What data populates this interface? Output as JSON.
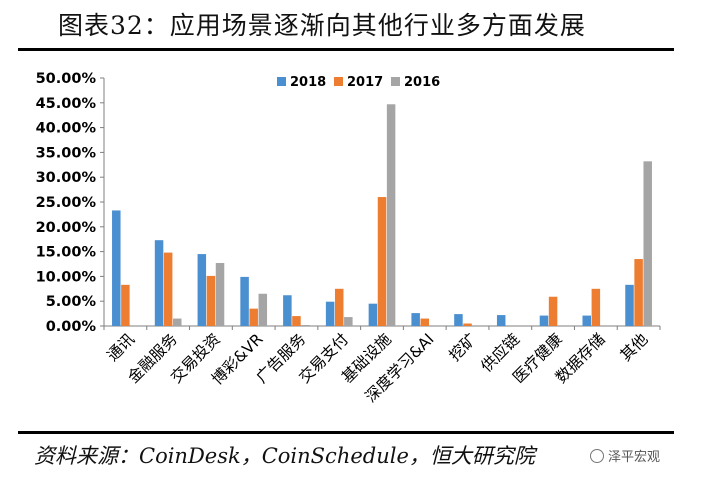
{
  "title": "图表32：应用场景逐渐向其他行业多方面发展",
  "source": "资料来源：CoinDesk，CoinSchedule，恒大研究院",
  "watermark": "泽平宏观",
  "chart_data": {
    "type": "bar",
    "categories": [
      "通讯",
      "金融服务",
      "交易投资",
      "博彩&VR",
      "广告服务",
      "交易支付",
      "基础设施",
      "深度学习&AI",
      "挖矿",
      "供应链",
      "医疗健康",
      "数据存储",
      "其他"
    ],
    "series": [
      {
        "name": "2018",
        "color": "#4a8fd0",
        "values": [
          23.3,
          17.3,
          14.5,
          9.9,
          6.2,
          4.9,
          4.5,
          2.6,
          2.4,
          2.2,
          2.1,
          2.1,
          8.3
        ]
      },
      {
        "name": "2017",
        "color": "#ed7d31",
        "values": [
          8.3,
          14.8,
          10.1,
          3.5,
          2.0,
          7.5,
          26.0,
          1.5,
          0.5,
          0,
          5.9,
          7.5,
          13.5
        ]
      },
      {
        "name": "2016",
        "color": "#a5a5a5",
        "values": [
          0,
          1.5,
          12.7,
          6.5,
          0.2,
          1.8,
          44.7,
          0,
          0,
          0,
          0,
          0,
          33.2
        ]
      }
    ],
    "y_ticks": [
      "0.00%",
      "5.00%",
      "10.00%",
      "15.00%",
      "20.00%",
      "25.00%",
      "30.00%",
      "35.00%",
      "40.00%",
      "45.00%",
      "50.00%"
    ],
    "ylim": [
      0,
      50
    ],
    "grid": false,
    "legend": "top-center"
  }
}
